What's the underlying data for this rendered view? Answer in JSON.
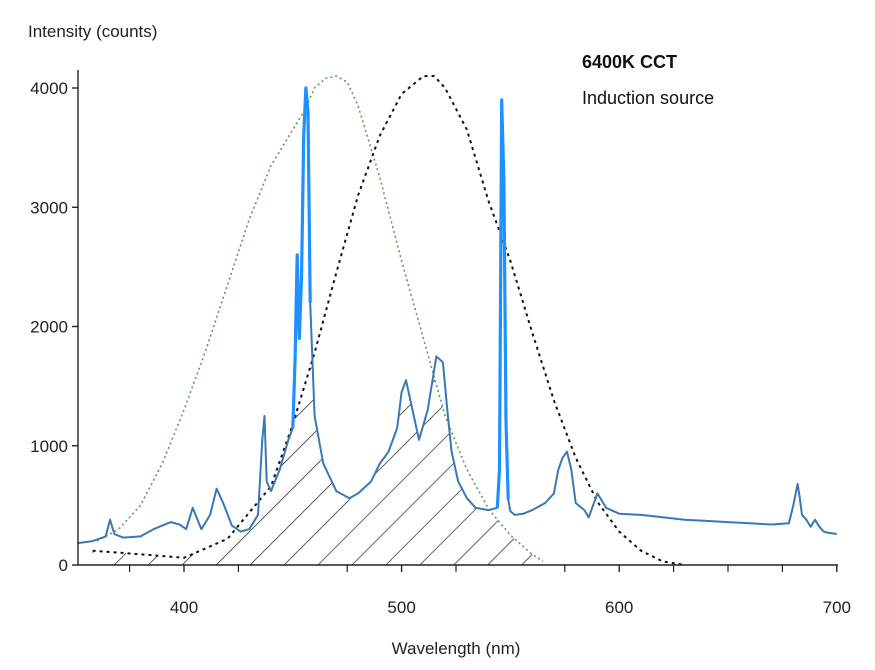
{
  "chart_data": {
    "type": "line",
    "title": "",
    "xlabel": "Wavelength (nm)",
    "ylabel": "Intensity (counts)",
    "xlim": [
      350,
      700
    ],
    "ylim": [
      0,
      4100
    ],
    "x_ticks": [
      400,
      500,
      600,
      700
    ],
    "x_tick_labels": [
      "400",
      "500",
      "600",
      "700"
    ],
    "y_ticks": [
      0,
      1000,
      2000,
      3000,
      4000
    ],
    "y_tick_labels": [
      "0",
      "1000",
      "2000",
      "3000",
      "4000"
    ],
    "x_minor_ticks": [
      375,
      425,
      475,
      525,
      575,
      625,
      650,
      675
    ],
    "grid": false,
    "annotations": [
      "6400K CCT",
      "Induction source"
    ],
    "colors": {
      "spectrum": "#3a78b5",
      "spectrum_peak": "#1e90ff",
      "green_curve": "#5b9b5b",
      "black_curve": "#111111",
      "axis": "#222222"
    },
    "series": [
      {
        "style": "solid-blue",
        "x": [
          350,
          358,
          364,
          366,
          368,
          372,
          380,
          386,
          390,
          394,
          398,
          401,
          404,
          408,
          412,
          415,
          418,
          422,
          426,
          430,
          434,
          436,
          437,
          438,
          440,
          444,
          448,
          450,
          451,
          452,
          453,
          454,
          455,
          456,
          457,
          458,
          460,
          464,
          470,
          476,
          480,
          486,
          490,
          494,
          498,
          500,
          502,
          505,
          508,
          512,
          516,
          519,
          521,
          523,
          526,
          530,
          534,
          540,
          544,
          545,
          546,
          547,
          548,
          549,
          550,
          552,
          556,
          560,
          566,
          570,
          572,
          574,
          576,
          578,
          580,
          584,
          586,
          588,
          590,
          594,
          600,
          610,
          620,
          630,
          640,
          650,
          660,
          670,
          678,
          680,
          682,
          683,
          684,
          686,
          688,
          690,
          692,
          694,
          696,
          700
        ],
        "y": [
          180,
          200,
          240,
          380,
          260,
          230,
          240,
          300,
          330,
          360,
          340,
          300,
          480,
          300,
          420,
          640,
          520,
          330,
          280,
          300,
          420,
          1050,
          1250,
          700,
          620,
          800,
          1050,
          1150,
          1700,
          2600,
          1900,
          2400,
          3600,
          4000,
          3800,
          2200,
          1250,
          850,
          620,
          560,
          600,
          700,
          850,
          950,
          1150,
          1450,
          1550,
          1300,
          1050,
          1300,
          1750,
          1700,
          1300,
          950,
          700,
          560,
          480,
          460,
          480,
          800,
          3900,
          3200,
          1200,
          550,
          450,
          420,
          430,
          460,
          520,
          600,
          800,
          900,
          950,
          800,
          520,
          460,
          400,
          500,
          600,
          480,
          430,
          420,
          400,
          380,
          370,
          360,
          350,
          340,
          350,
          500,
          680,
          560,
          420,
          380,
          320,
          380,
          320,
          280,
          270,
          260
        ]
      },
      {
        "style": "dotted-green",
        "x": [
          360,
          370,
          380,
          390,
          400,
          410,
          420,
          430,
          440,
          450,
          455,
          460,
          465,
          470,
          475,
          480,
          490,
          500,
          510,
          520,
          530,
          540,
          550,
          560,
          565
        ],
        "y": [
          200,
          300,
          500,
          850,
          1300,
          1800,
          2350,
          2900,
          3350,
          3650,
          3800,
          4000,
          4080,
          4100,
          4050,
          3850,
          3250,
          2550,
          1900,
          1250,
          800,
          470,
          250,
          90,
          30
        ]
      },
      {
        "style": "dotted-black",
        "x": [
          358,
          380,
          400,
          420,
          440,
          450,
          460,
          470,
          480,
          490,
          500,
          510,
          515,
          520,
          530,
          540,
          550,
          560,
          570,
          580,
          590,
          600,
          610,
          620,
          630
        ],
        "y": [
          120,
          90,
          60,
          220,
          660,
          1180,
          1780,
          2450,
          3100,
          3600,
          3950,
          4100,
          4100,
          4000,
          3650,
          3050,
          2550,
          1950,
          1380,
          900,
          530,
          280,
          120,
          30,
          0
        ]
      }
    ]
  }
}
